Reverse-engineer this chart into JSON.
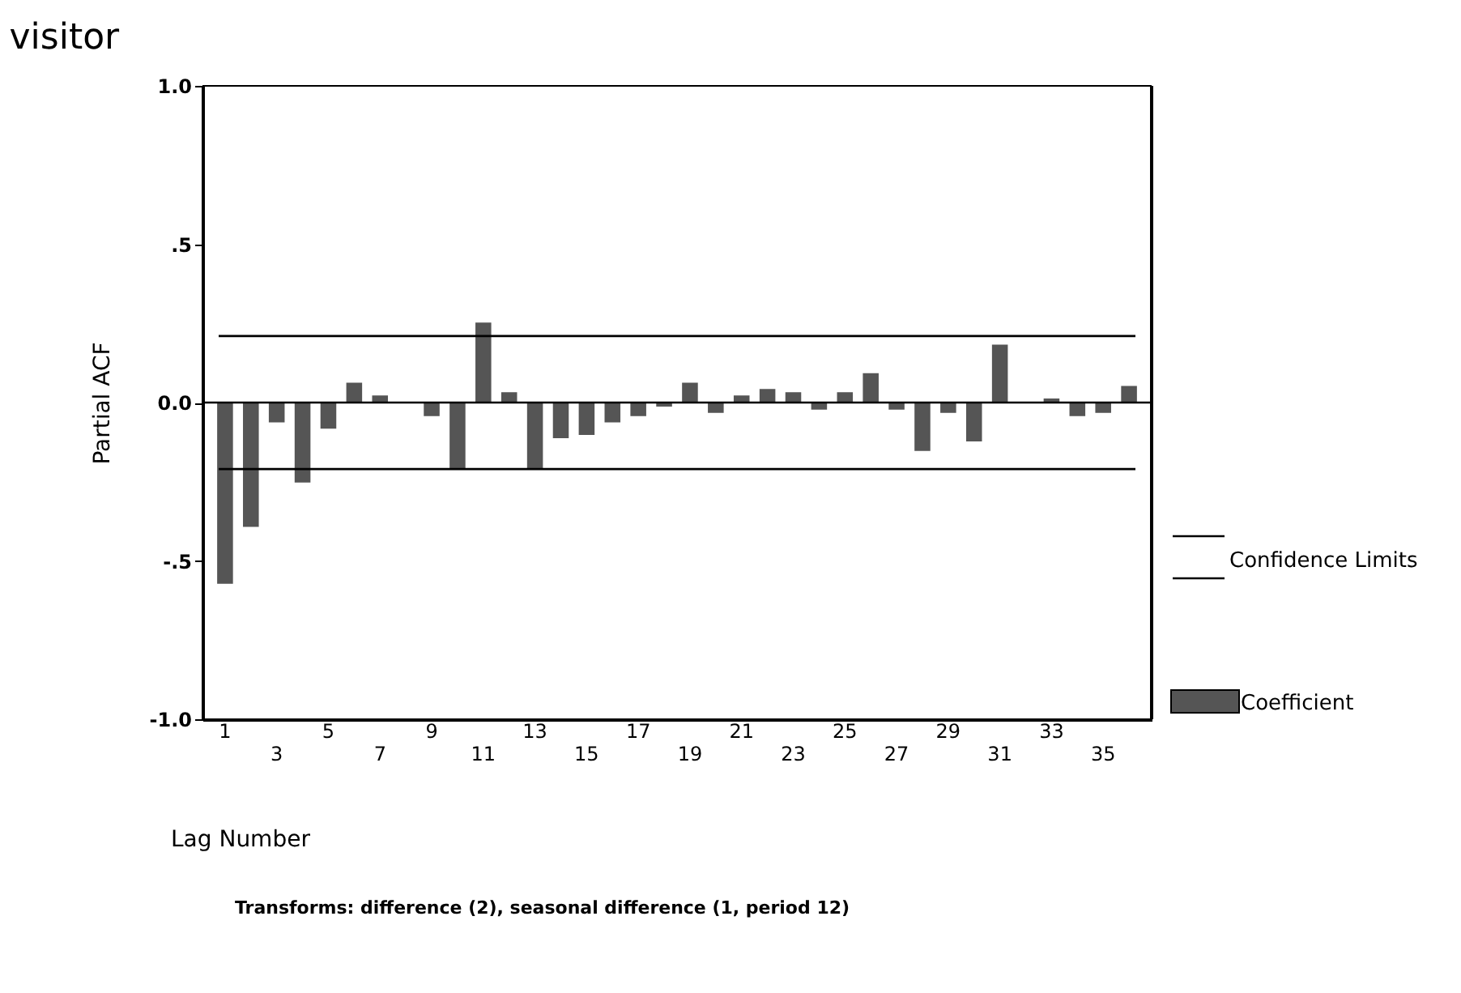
{
  "chart_data": {
    "type": "bar",
    "title": "visitor",
    "xlabel": "Lag Number",
    "ylabel": "Partial ACF",
    "categories": [
      "1",
      null,
      "3",
      null,
      "5",
      null,
      "7",
      null,
      "9",
      null,
      "11",
      null,
      "13",
      null,
      "15",
      null,
      "17",
      null,
      "19",
      null,
      "21",
      null,
      "23",
      null,
      "25",
      null,
      "27",
      null,
      "29",
      null,
      "31",
      null,
      "33",
      null,
      "35",
      null
    ],
    "series": [
      {
        "name": "Coefficient",
        "color": "#555555",
        "values": [
          -0.57,
          -0.39,
          -0.06,
          -0.25,
          -0.08,
          0.06,
          0.02,
          0.0,
          -0.04,
          -0.21,
          0.25,
          0.03,
          -0.21,
          -0.11,
          -0.1,
          -0.06,
          -0.04,
          -0.01,
          0.06,
          -0.03,
          0.02,
          0.04,
          0.03,
          -0.02,
          0.03,
          0.09,
          -0.02,
          -0.15,
          -0.03,
          -0.12,
          0.18,
          0.0,
          0.01,
          -0.04,
          -0.03,
          0.05
        ]
      }
    ],
    "ref_lines": [
      {
        "axis": "y",
        "value": 0.21,
        "label": "Confidence Limits",
        "color": "#000000"
      },
      {
        "axis": "y",
        "value": -0.21,
        "color": "#000000"
      },
      {
        "axis": "y",
        "value": 0,
        "color": "#000000"
      }
    ],
    "ylim": [
      -1.0,
      1.0
    ],
    "yticks": [
      {
        "value": -1.0,
        "label": "-1.0"
      },
      {
        "value": -0.5,
        "label": "-.5"
      },
      {
        "value": 0,
        "label": "0.0"
      },
      {
        "value": 0.5,
        "label": ".5"
      },
      {
        "value": 1.0,
        "label": "1.0"
      }
    ],
    "grid": false,
    "legend": "right",
    "annotations": [
      "Transforms: difference (2), seasonal difference (1, period 12)"
    ]
  }
}
